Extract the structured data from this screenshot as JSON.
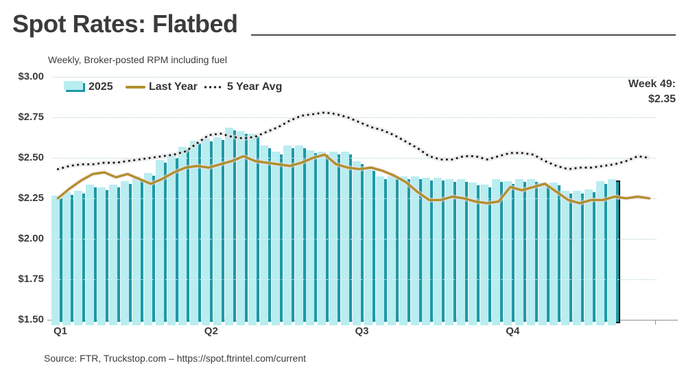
{
  "title": "Spot Rates: Flatbed",
  "subtitle": "Weekly, Broker-posted RPM including fuel",
  "annotation": {
    "line1": "Week 49:",
    "line2": "$2.35"
  },
  "source": "Source: FTR, Truckstop.com – https://spot.ftrintel.com/current",
  "legend": [
    {
      "label": "2025",
      "type": "bar",
      "color": "#1e98a6"
    },
    {
      "label": "Last Year",
      "type": "line",
      "color": "#b0902c"
    },
    {
      "label": "5 Year Avg",
      "type": "dotted-line",
      "color": "#1c1c1c"
    }
  ],
  "chart_data": {
    "type": "bar",
    "title": "Spot Rates: Flatbed",
    "subtitle": "Weekly, Broker-posted RPM including fuel",
    "unit": "USD per mile (RPM)",
    "x_axis": {
      "labels": [
        "Q1",
        "Q2",
        "Q3",
        "Q4"
      ],
      "total_weeks": 52,
      "weeks_with_bars": 49
    },
    "y_axis": {
      "min": 1.5,
      "max": 3.0,
      "step": 0.25,
      "tick_labels": [
        "$3.00",
        "$2.75",
        "$2.50",
        "$2.25",
        "$2.00",
        "$1.75",
        "$1.50"
      ]
    },
    "highlight_week": 49,
    "highlight_value": "$2.35",
    "grid": true,
    "legend_position": "top-left",
    "series": [
      {
        "name": "2025",
        "type": "bar",
        "color": "#1e98a6",
        "values": [
          2.25,
          2.27,
          2.28,
          2.32,
          2.3,
          2.32,
          2.34,
          2.37,
          2.39,
          2.47,
          2.5,
          2.55,
          2.59,
          2.6,
          2.61,
          2.67,
          2.65,
          2.63,
          2.56,
          2.52,
          2.56,
          2.56,
          2.53,
          2.52,
          2.52,
          2.52,
          2.46,
          2.42,
          2.37,
          2.37,
          2.37,
          2.37,
          2.36,
          2.36,
          2.35,
          2.35,
          2.33,
          2.32,
          2.35,
          2.34,
          2.35,
          2.35,
          2.33,
          2.33,
          2.28,
          2.28,
          2.29,
          2.34,
          2.35
        ]
      },
      {
        "name": "Last Year",
        "type": "line",
        "color": "#b0902c",
        "values": [
          2.25,
          2.31,
          2.36,
          2.4,
          2.41,
          2.38,
          2.4,
          2.37,
          2.34,
          2.37,
          2.41,
          2.44,
          2.45,
          2.44,
          2.46,
          2.48,
          2.51,
          2.48,
          2.47,
          2.46,
          2.45,
          2.47,
          2.5,
          2.52,
          2.46,
          2.44,
          2.43,
          2.44,
          2.42,
          2.39,
          2.35,
          2.29,
          2.24,
          2.24,
          2.26,
          2.25,
          2.23,
          2.22,
          2.23,
          2.32,
          2.3,
          2.32,
          2.34,
          2.29,
          2.24,
          2.22,
          2.24,
          2.24,
          2.26,
          2.25,
          2.26,
          2.25
        ]
      },
      {
        "name": "5 Year Avg",
        "type": "dotted-line",
        "color": "#1c1c1c",
        "values": [
          2.43,
          2.45,
          2.46,
          2.46,
          2.47,
          2.47,
          2.48,
          2.49,
          2.5,
          2.51,
          2.52,
          2.54,
          2.59,
          2.64,
          2.65,
          2.63,
          2.62,
          2.63,
          2.66,
          2.69,
          2.73,
          2.76,
          2.77,
          2.78,
          2.77,
          2.75,
          2.72,
          2.69,
          2.67,
          2.64,
          2.6,
          2.56,
          2.51,
          2.49,
          2.49,
          2.51,
          2.51,
          2.49,
          2.51,
          2.53,
          2.53,
          2.52,
          2.48,
          2.45,
          2.43,
          2.44,
          2.44,
          2.45,
          2.46,
          2.48,
          2.51,
          2.5
        ]
      }
    ]
  }
}
